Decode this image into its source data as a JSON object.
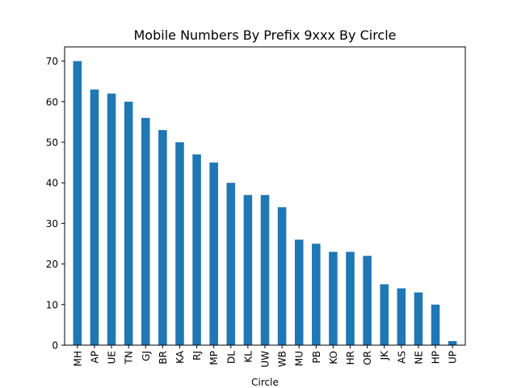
{
  "chart_data": {
    "type": "bar",
    "title": "Mobile Numbers By Prefix 9xxx By Circle",
    "xlabel": "Circle",
    "ylabel": "",
    "categories": [
      "MH",
      "AP",
      "UE",
      "TN",
      "GJ",
      "BR",
      "KA",
      "RJ",
      "MP",
      "DL",
      "KL",
      "UW",
      "WB",
      "MU",
      "PB",
      "KO",
      "HR",
      "OR",
      "JK",
      "AS",
      "NE",
      "HP",
      "UP"
    ],
    "values": [
      70,
      63,
      62,
      60,
      56,
      53,
      50,
      47,
      45,
      40,
      37,
      37,
      34,
      26,
      25,
      23,
      23,
      22,
      15,
      14,
      13,
      10,
      1
    ],
    "ylim": [
      0,
      73.5
    ],
    "yticks": [
      0,
      10,
      20,
      30,
      40,
      50,
      60,
      70
    ],
    "legend": "none",
    "grid": false,
    "bar_color": "#1f77b4"
  }
}
